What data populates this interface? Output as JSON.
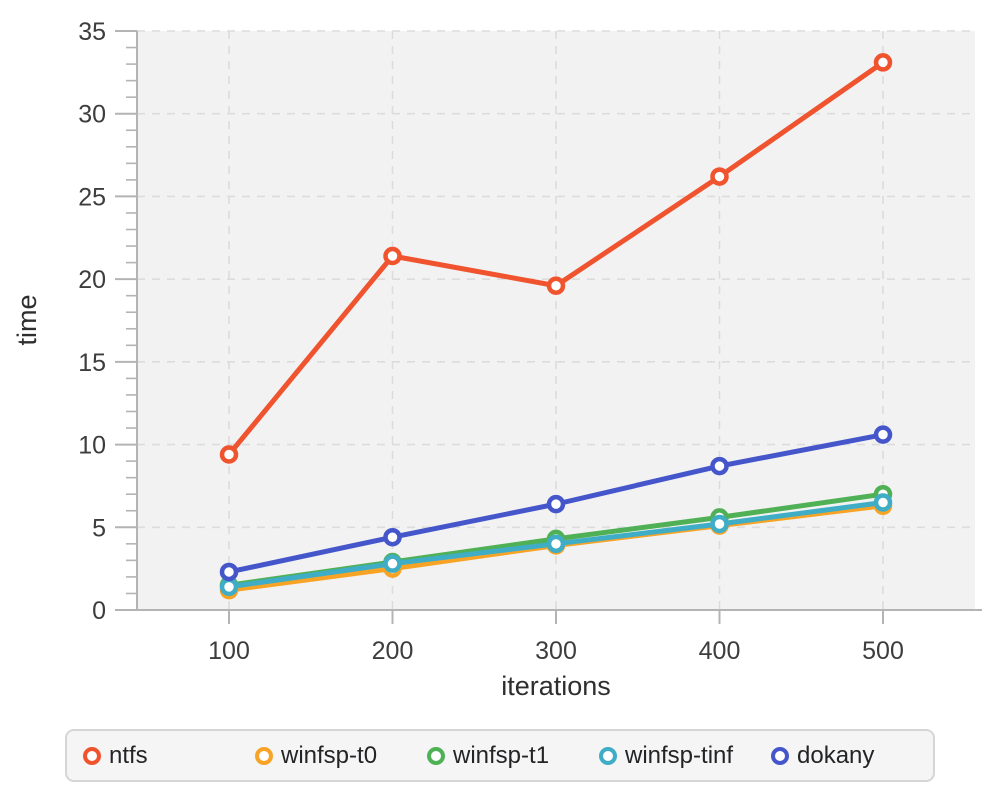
{
  "theme": {
    "page_bg": "#ffffff",
    "plot_bg": "#f2f2f3",
    "grid_color": "#dcdcdc",
    "axis_color": "#b4b4b4",
    "tick_label_color": "#3d3d3d",
    "axis_title_color": "#2e2e2e",
    "legend_bg": "#f5f5f6",
    "legend_border": "#d6d6d6"
  },
  "chart_data": {
    "type": "line",
    "x": [
      100,
      200,
      300,
      400,
      500
    ],
    "xlabel": "iterations",
    "ylabel": "time",
    "xticks": [
      100,
      200,
      300,
      400,
      500
    ],
    "yticks": [
      0,
      5,
      10,
      15,
      20,
      25,
      30,
      35
    ],
    "y_minor_tick_step": 1,
    "xlim": [
      44,
      556
    ],
    "ylim": [
      0,
      35
    ],
    "grid": true,
    "grid_style": "dashed",
    "legend_position": "bottom",
    "marker": "open-circle",
    "series": [
      {
        "name": "ntfs",
        "color": "#f0542f",
        "values": [
          9.4,
          21.4,
          19.6,
          26.2,
          33.1
        ]
      },
      {
        "name": "winfsp-t0",
        "color": "#f7a426",
        "values": [
          1.2,
          2.5,
          3.9,
          5.1,
          6.3
        ]
      },
      {
        "name": "winfsp-t1",
        "color": "#4fb056",
        "values": [
          1.5,
          2.9,
          4.3,
          5.6,
          7.0
        ]
      },
      {
        "name": "winfsp-tinf",
        "color": "#3fadc6",
        "values": [
          1.4,
          2.8,
          4.0,
          5.2,
          6.5
        ]
      },
      {
        "name": "dokany",
        "color": "#4556cb",
        "values": [
          2.3,
          4.4,
          6.4,
          8.7,
          10.6
        ]
      }
    ]
  }
}
